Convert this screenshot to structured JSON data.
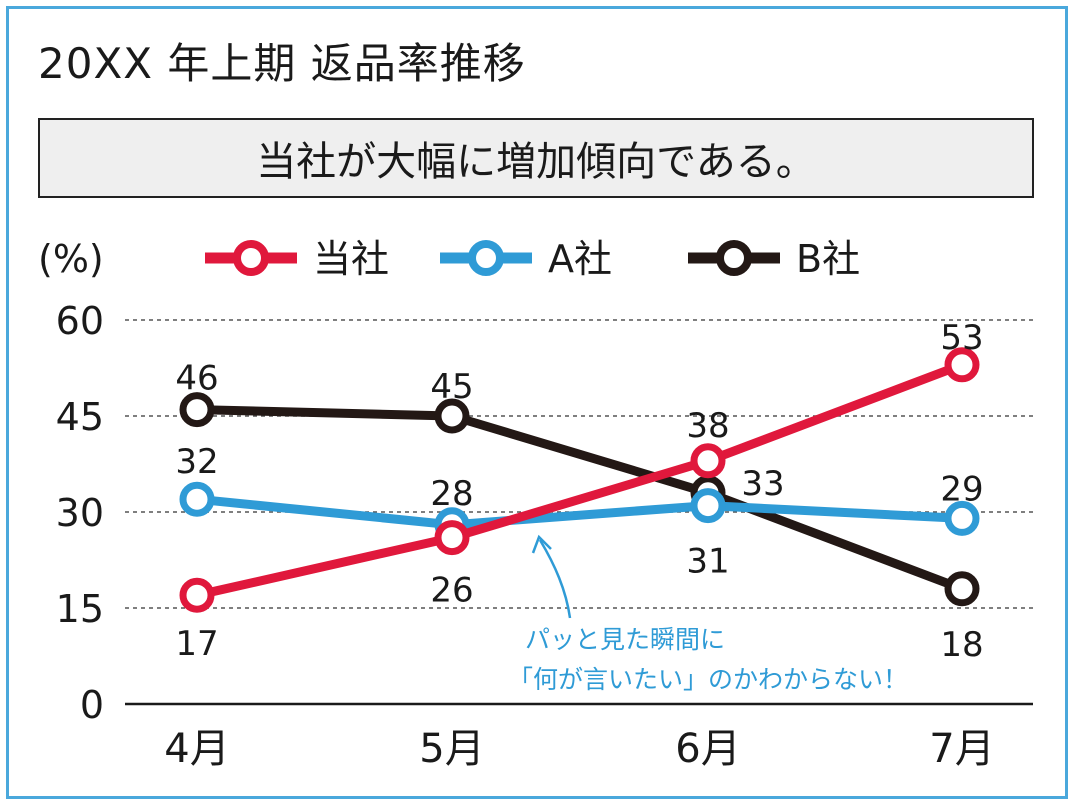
{
  "title": "20XX 年上期 返品率推移",
  "subtitle": "当社が大幅に増加傾向である。",
  "colors": {
    "frame": "#4aa8dc",
    "series": [
      "#e0183c",
      "#2f9bd6",
      "#231815"
    ],
    "note": "#2f9bd6"
  },
  "chart_data": {
    "type": "line",
    "unit_label": "(%)",
    "categories": [
      "4月",
      "5月",
      "6月",
      "7月"
    ],
    "yticks": [
      "60",
      "45",
      "30",
      "15",
      "0"
    ],
    "ylim": [
      0,
      60
    ],
    "grid": "horizontal dashed",
    "legend_position": "top",
    "series": [
      {
        "name": "当社",
        "values": [
          17,
          26,
          38,
          53
        ]
      },
      {
        "name": "A社",
        "values": [
          32,
          28,
          31,
          29
        ]
      },
      {
        "name": "B社",
        "values": [
          46,
          45,
          33,
          18
        ]
      }
    ],
    "annotation": [
      "パッと見た瞬間に",
      "「何が言いたい」のかわからない！"
    ]
  }
}
